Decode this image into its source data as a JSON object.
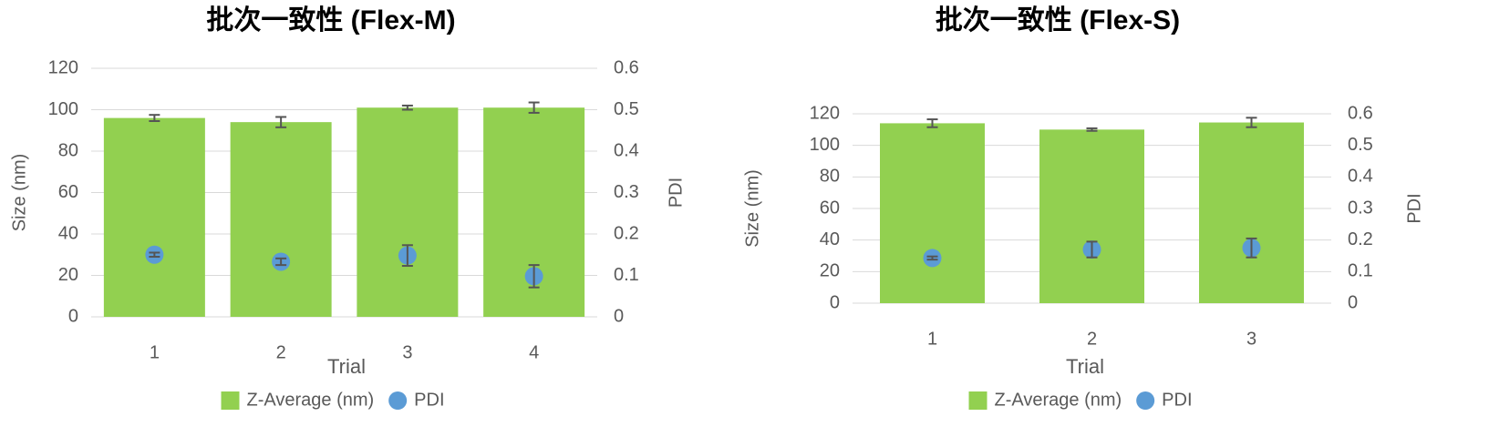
{
  "chart_data": [
    {
      "type": "bar",
      "title": "批次一致性 (Flex-M)",
      "x_label": "Trial",
      "y_label": "Size (nm)",
      "y2_label": "PDI",
      "categories": [
        "1",
        "2",
        "3",
        "4"
      ],
      "series": [
        {
          "name": "Z-Average (nm)",
          "type": "bar",
          "color": "#92d050",
          "values": [
            96,
            94,
            101,
            101
          ],
          "errors": [
            1.5,
            2.5,
            1,
            2.5
          ]
        },
        {
          "name": "PDI",
          "type": "scatter",
          "axis": "y2",
          "color": "#5b9bd5",
          "values": [
            0.15,
            0.133,
            0.148,
            0.098
          ],
          "errors": [
            0.005,
            0.008,
            0.025,
            0.027
          ]
        }
      ],
      "ylim": [
        0,
        120
      ],
      "yticks": [
        0,
        20,
        40,
        60,
        80,
        100,
        120
      ],
      "y2lim": [
        0,
        0.6
      ],
      "y2ticks": [
        0,
        0.1,
        0.2,
        0.3,
        0.4,
        0.5,
        0.6
      ],
      "grid": true
    },
    {
      "type": "bar",
      "title": "批次一致性 (Flex-S)",
      "x_label": "Trial",
      "y_label": "Size (nm)",
      "y2_label": "PDI",
      "categories": [
        "1",
        "2",
        "3"
      ],
      "series": [
        {
          "name": "Z-Average (nm)",
          "type": "bar",
          "color": "#92d050",
          "values": [
            114,
            110,
            114.5
          ],
          "errors": [
            2.5,
            0.8,
            3
          ]
        },
        {
          "name": "PDI",
          "type": "scatter",
          "axis": "y2",
          "color": "#5b9bd5",
          "values": [
            0.143,
            0.17,
            0.175
          ],
          "errors": [
            0.005,
            0.025,
            0.03
          ]
        }
      ],
      "ylim": [
        0,
        120
      ],
      "yticks": [
        0,
        20,
        40,
        60,
        80,
        100,
        120
      ],
      "y2lim": [
        0,
        0.6
      ],
      "y2ticks": [
        0,
        0.1,
        0.2,
        0.3,
        0.4,
        0.5,
        0.6
      ],
      "grid": true
    }
  ]
}
